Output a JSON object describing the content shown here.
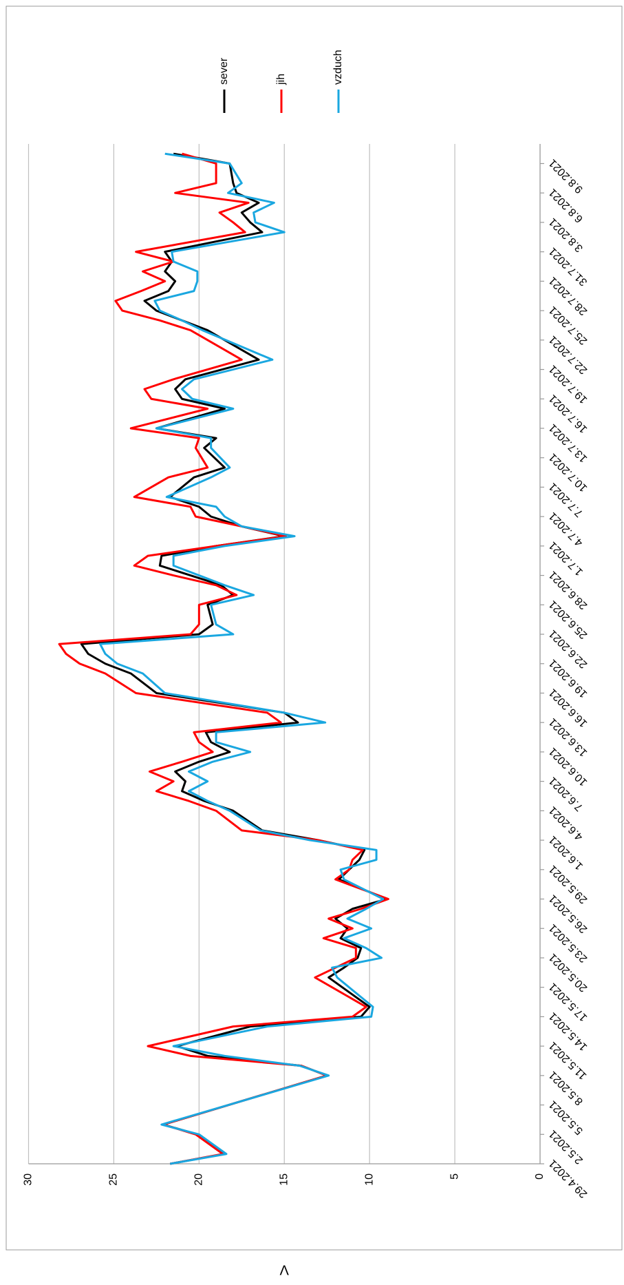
{
  "chart_data": {
    "type": "line",
    "y_label": "V",
    "x": [
      "29.4.2021",
      "30.4.2021",
      "2.5.2021",
      "3.5.2021",
      "8.5.2021",
      "9.5.2021",
      "10.5.2021",
      "11.5.2021",
      "13.5.2021",
      "14.5.2021",
      "15.5.2021",
      "18.5.2021",
      "19.5.2021",
      "20.5.2021",
      "21.5.2021",
      "22.5.2021",
      "23.5.2021",
      "24.5.2021",
      "25.5.2021",
      "26.5.2021",
      "28.5.2021",
      "29.5.2021",
      "30.5.2021",
      "31.5.2021",
      "1.6.2021",
      "2.6.2021",
      "4.6.2021",
      "5.6.2021",
      "6.6.2021",
      "7.6.2021",
      "8.6.2021",
      "9.6.2021",
      "10.6.2021",
      "11.6.2021",
      "12.6.2021",
      "13.6.2021",
      "14.6.2021",
      "16.6.2021",
      "18.6.2021",
      "19.6.2021",
      "20.6.2021",
      "21.6.2021",
      "22.6.2021",
      "23.6.2021",
      "25.6.2021",
      "26.6.2021",
      "27.6.2021",
      "28.6.2021",
      "29.6.2021",
      "30.6.2021",
      "1.7.2021",
      "2.7.2021",
      "3.7.2021",
      "4.7.2021",
      "5.7.2021",
      "6.7.2021",
      "8.7.2021",
      "9.7.2021",
      "11.7.2021",
      "12.7.2021",
      "13.7.2021",
      "15.7.2021",
      "16.7.2021",
      "17.7.2021",
      "18.7.2021",
      "20.7.2021",
      "23.7.2021",
      "24.7.2021",
      "25.7.2021",
      "26.7.2021",
      "27.7.2021",
      "28.7.2021",
      "29.7.2021",
      "30.7.2021",
      "31.7.2021",
      "2.8.2021",
      "3.8.2021",
      "4.8.2021",
      "5.8.2021",
      "6.8.2021",
      "7.8.2021",
      "9.8.2021",
      "10.8.2021"
    ],
    "series": [
      {
        "name": "sever",
        "color": "#000000",
        "values": [
          21.7,
          18.5,
          20.1,
          22.1,
          12.5,
          14.0,
          19.5,
          21.3,
          17.0,
          10.5,
          10.0,
          12.4,
          11.5,
          10.7,
          10.5,
          11.7,
          11.3,
          12.0,
          11.0,
          9.0,
          11.8,
          11.2,
          10.6,
          10.3,
          13.0,
          16.3,
          18.0,
          19.7,
          21.0,
          20.8,
          21.4,
          20.0,
          18.2,
          19.3,
          19.6,
          14.2,
          15.0,
          22.5,
          24.0,
          25.5,
          26.5,
          26.9,
          20.0,
          19.2,
          19.5,
          18.0,
          18.7,
          20.5,
          22.3,
          22.2,
          19.0,
          15.0,
          17.5,
          19.3,
          20.0,
          21.7,
          20.3,
          18.5,
          19.7,
          19.0,
          22.5,
          18.5,
          21.0,
          21.4,
          20.8,
          16.5,
          19.5,
          21.0,
          22.5,
          23.2,
          21.8,
          21.4,
          22.0,
          21.6,
          22.0,
          16.3,
          17.0,
          17.5,
          16.5,
          17.8,
          18.0,
          18.2,
          21.5
        ]
      },
      {
        "name": "jih",
        "color": "#ff0000",
        "values": [
          21.7,
          18.6,
          20.2,
          22.1,
          12.5,
          14.0,
          20.5,
          23.0,
          18.0,
          11.0,
          10.2,
          13.2,
          12.0,
          10.8,
          10.8,
          12.7,
          11.0,
          12.4,
          10.5,
          8.9,
          12.0,
          11.2,
          11.0,
          10.4,
          13.0,
          17.5,
          19.0,
          20.6,
          22.5,
          21.5,
          22.9,
          21.0,
          19.2,
          20.0,
          20.3,
          15.2,
          16.0,
          23.7,
          25.5,
          27.0,
          27.8,
          28.2,
          20.5,
          20.0,
          20.0,
          17.8,
          19.0,
          21.5,
          23.8,
          23.0,
          19.0,
          14.9,
          17.5,
          20.2,
          20.5,
          23.8,
          21.8,
          19.5,
          20.2,
          20.0,
          24.0,
          19.5,
          22.8,
          23.2,
          21.5,
          17.5,
          20.5,
          22.3,
          24.5,
          24.9,
          23.4,
          22.0,
          23.3,
          21.5,
          23.7,
          17.3,
          18.0,
          18.8,
          17.1,
          21.4,
          19.0,
          19.0,
          21.0
        ]
      },
      {
        "name": "vzduch",
        "color": "#1aa7e0",
        "values": [
          21.7,
          18.4,
          20.0,
          22.2,
          12.4,
          14.1,
          18.5,
          21.5,
          16.0,
          9.9,
          9.8,
          11.9,
          12.2,
          9.3,
          10.2,
          11.5,
          9.9,
          11.3,
          10.2,
          9.2,
          11.5,
          11.7,
          9.6,
          9.6,
          13.5,
          16.4,
          18.2,
          19.5,
          20.6,
          19.5,
          20.6,
          19.2,
          17.0,
          19.0,
          19.0,
          12.6,
          15.0,
          22.0,
          23.3,
          24.8,
          25.5,
          25.8,
          18.0,
          19.0,
          19.3,
          16.8,
          18.5,
          20.0,
          21.5,
          21.5,
          18.5,
          14.4,
          17.5,
          18.5,
          19.0,
          21.9,
          19.3,
          18.2,
          19.3,
          19.3,
          22.5,
          18.0,
          20.4,
          21.0,
          20.3,
          15.7,
          19.8,
          21.0,
          22.3,
          22.6,
          20.3,
          20.1,
          20.1,
          21.5,
          21.6,
          15.0,
          16.7,
          16.8,
          15.6,
          18.3,
          17.5,
          18.2,
          22.0
        ]
      }
    ],
    "xlim": [
      "29.4.2021",
      "11.8.2021"
    ],
    "xticks": [
      "29.4.2021",
      "2.5.2021",
      "5.5.2021",
      "8.5.2021",
      "11.5.2021",
      "14.5.2021",
      "17.5.2021",
      "20.5.2021",
      "23.5.2021",
      "26.5.2021",
      "29.5.2021",
      "1.6.2021",
      "4.6.2021",
      "7.6.2021",
      "10.6.2021",
      "13.6.2021",
      "16.6.2021",
      "19.6.2021",
      "22.6.2021",
      "25.6.2021",
      "28.6.2021",
      "1.7.2021",
      "4.7.2021",
      "7.7.2021",
      "10.7.2021",
      "13.7.2021",
      "16.7.2021",
      "19.7.2021",
      "22.7.2021",
      "25.7.2021",
      "28.7.2021",
      "31.7.2021",
      "3.8.2021",
      "6.8.2021",
      "9.8.2021"
    ],
    "ylim": [
      0,
      30
    ],
    "yticks": [
      0,
      5,
      10,
      15,
      20,
      25,
      30
    ],
    "grid": true,
    "legend": "right",
    "rotation": -90
  }
}
